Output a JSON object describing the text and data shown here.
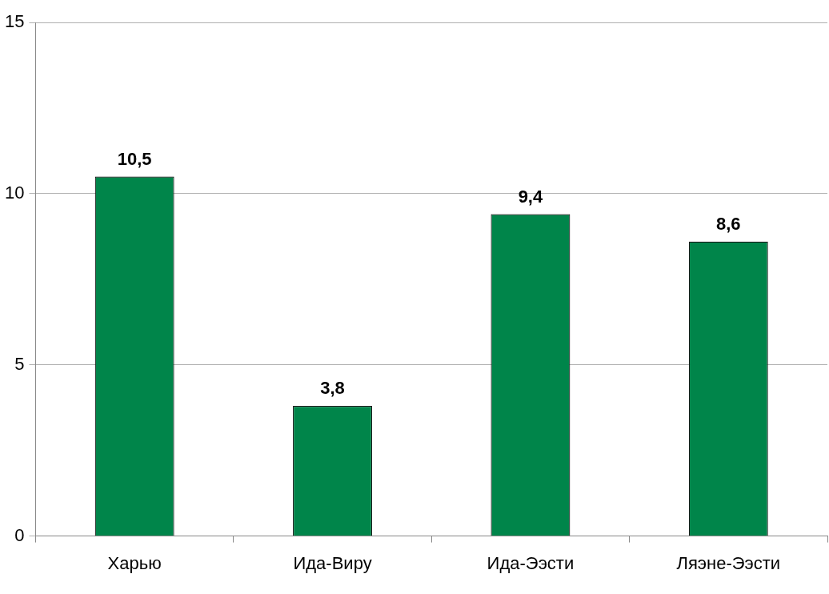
{
  "chart_data": {
    "type": "bar",
    "categories": [
      "Харью",
      "Ида-Виру",
      "Ида-Ээсти",
      "Ляэне-Ээсти"
    ],
    "values": [
      10.5,
      3.8,
      9.4,
      8.6
    ],
    "value_labels": [
      "10,5",
      "3,8",
      "9,4",
      "8,6"
    ],
    "color": "#00854a",
    "ylim": [
      0,
      15
    ],
    "yticks": [
      0,
      5,
      10,
      15
    ],
    "grid": "y",
    "legend": false
  }
}
